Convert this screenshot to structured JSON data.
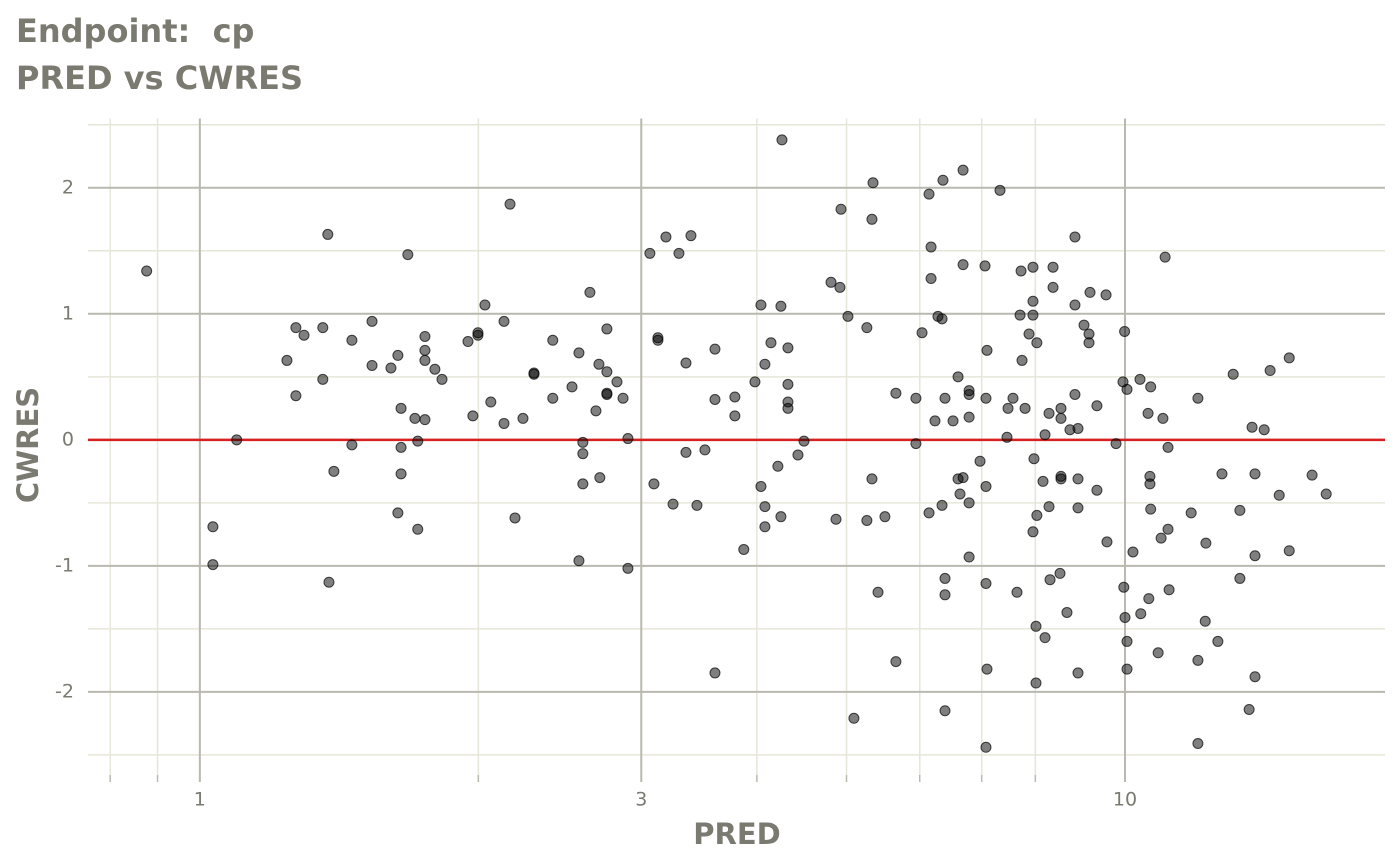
{
  "chart_data": {
    "type": "scatter",
    "title": "Endpoint:  cp",
    "subtitle": "PRED vs CWRES",
    "x_label": "PRED",
    "y_label": "CWRES",
    "x_scale": "log",
    "grid": true,
    "color": "#000000",
    "alpha": 0.5,
    "hline": 0,
    "hline_color": "#d92020",
    "xlim": [
      0.757,
      19.1
    ],
    "ylim": [
      -2.66,
      2.55
    ],
    "xticks": [
      1,
      3,
      10
    ],
    "xminor": [
      0.8,
      0.9,
      2,
      4,
      5,
      6,
      7,
      8
    ],
    "yticks": [
      -2,
      -1,
      0,
      1,
      2
    ],
    "yminor": [
      -2.5,
      -1.5,
      -0.5,
      0.5,
      1.5,
      2.5
    ],
    "x": [
      0.876,
      1.033,
      1.033,
      1.096,
      1.242,
      1.27,
      1.27,
      1.296,
      1.358,
      1.358,
      1.375,
      1.379,
      1.396,
      1.46,
      1.46,
      1.535,
      1.535,
      1.609,
      1.637,
      1.637,
      1.65,
      1.65,
      1.65,
      1.678,
      1.708,
      1.72,
      1.72,
      1.751,
      1.751,
      1.751,
      1.751,
      1.795,
      1.827,
      1.949,
      1.973,
      1.998,
      1.998,
      2.033,
      2.063,
      2.132,
      2.132,
      2.164,
      2.191,
      2.235,
      2.297,
      2.297,
      2.407,
      2.407,
      2.525,
      2.569,
      2.569,
      2.594,
      2.594,
      2.594,
      2.64,
      2.68,
      2.7,
      2.706,
      2.754,
      2.754,
      2.754,
      2.754,
      2.824,
      2.867,
      2.902,
      2.902,
      3.065,
      3.096,
      3.127,
      3.127,
      3.19,
      3.247,
      3.295,
      3.353,
      3.353,
      3.395,
      3.446,
      3.515,
      3.604,
      3.604,
      3.604,
      3.787,
      3.787,
      3.872,
      3.981,
      4.041,
      4.041,
      4.081,
      4.081,
      4.081,
      4.143,
      4.215,
      4.247,
      4.247,
      4.258,
      4.322,
      4.322,
      4.322,
      4.322,
      4.431,
      4.498,
      4.811,
      4.871,
      4.919,
      4.932,
      5.018,
      5.093,
      5.26,
      5.26,
      5.327,
      5.327,
      5.341,
      5.408,
      5.502,
      5.654,
      5.654,
      5.943,
      5.943,
      6.034,
      6.14,
      6.14,
      6.171,
      6.171,
      6.232,
      6.278,
      6.342,
      6.342,
      6.357,
      6.389,
      6.389,
      6.389,
      6.389,
      6.518,
      6.6,
      6.6,
      6.632,
      6.683,
      6.683,
      6.683,
      6.784,
      6.784,
      6.784,
      6.784,
      6.784,
      6.971,
      7.058,
      7.075,
      7.075,
      7.075,
      7.075,
      7.093,
      7.093,
      7.326,
      7.455,
      7.474,
      7.567,
      7.643,
      7.701,
      7.72,
      7.739,
      7.798,
      7.875,
      7.953,
      7.953,
      7.953,
      7.953,
      7.973,
      8.013,
      8.013,
      8.03,
      8.03,
      8.154,
      8.195,
      8.195,
      8.277,
      8.277,
      8.298,
      8.36,
      8.36,
      8.506,
      8.527,
      8.527,
      8.527,
      8.527,
      8.655,
      8.72,
      8.829,
      8.829,
      8.829,
      8.896,
      8.896,
      8.896,
      8.896,
      9.03,
      9.143,
      9.143,
      9.166,
      9.325,
      9.325,
      9.539,
      9.561,
      9.779,
      9.95,
      9.97,
      9.99,
      10.0,
      10.05,
      10.05,
      10.05,
      10.2,
      10.38,
      10.4,
      10.59,
      10.61,
      10.64,
      10.64,
      10.66,
      10.66,
      10.86,
      10.94,
      10.99,
      11.05,
      11.13,
      11.13,
      11.16,
      11.79,
      11.99,
      11.99,
      11.99,
      12.21,
      12.23,
      12.6,
      12.73,
      13.09,
      13.31,
      13.31,
      13.62,
      13.72,
      13.82,
      13.82,
      13.82,
      14.14,
      14.35,
      14.68,
      15.05,
      15.05,
      15.93,
      16.5
    ],
    "values": [
      1.34,
      -0.69,
      -0.99,
      0.0,
      0.63,
      0.89,
      0.35,
      0.83,
      0.89,
      0.48,
      1.63,
      -1.13,
      -0.25,
      0.79,
      -0.04,
      0.94,
      0.59,
      0.57,
      0.67,
      -0.58,
      0.25,
      -0.06,
      -0.27,
      1.47,
      0.17,
      -0.01,
      -0.71,
      0.82,
      0.71,
      0.63,
      0.16,
      0.56,
      0.48,
      0.78,
      0.19,
      0.83,
      0.85,
      1.07,
      0.3,
      0.94,
      0.13,
      1.87,
      -0.62,
      0.17,
      0.53,
      0.52,
      0.33,
      0.79,
      0.42,
      0.69,
      -0.96,
      -0.02,
      -0.11,
      -0.35,
      1.17,
      0.23,
      0.6,
      -0.3,
      0.88,
      0.54,
      0.37,
      0.36,
      0.46,
      0.33,
      0.01,
      -1.02,
      1.48,
      -0.35,
      0.81,
      0.79,
      1.61,
      -0.51,
      1.48,
      0.61,
      -0.1,
      1.62,
      -0.52,
      -0.08,
      0.72,
      0.32,
      -1.85,
      0.34,
      0.19,
      -0.87,
      0.46,
      -0.37,
      1.07,
      -0.53,
      -0.69,
      0.6,
      0.77,
      -0.21,
      1.06,
      -0.61,
      2.38,
      0.73,
      0.44,
      0.3,
      0.25,
      -0.12,
      -0.01,
      1.25,
      -0.63,
      1.21,
      1.83,
      0.98,
      -2.21,
      0.89,
      -0.64,
      1.75,
      -0.31,
      2.04,
      -1.21,
      -0.61,
      -1.76,
      0.37,
      0.33,
      -0.03,
      0.85,
      1.95,
      -0.58,
      1.53,
      1.28,
      0.15,
      0.98,
      0.96,
      -0.52,
      2.06,
      0.33,
      -1.1,
      -1.23,
      -2.15,
      0.15,
      0.5,
      -0.31,
      -0.43,
      1.39,
      -0.3,
      2.14,
      0.39,
      0.36,
      0.18,
      -0.5,
      -0.93,
      -0.17,
      1.38,
      0.33,
      -0.37,
      -1.14,
      -2.44,
      0.71,
      -1.82,
      1.98,
      0.02,
      0.25,
      0.33,
      -1.21,
      0.99,
      1.34,
      0.63,
      0.25,
      0.84,
      -0.73,
      0.99,
      1.1,
      1.37,
      -0.15,
      -1.48,
      -1.93,
      0.77,
      -0.6,
      -0.33,
      0.04,
      -1.57,
      -0.53,
      0.21,
      -1.11,
      1.37,
      1.21,
      -1.06,
      0.25,
      0.17,
      -0.29,
      -0.31,
      -1.37,
      0.08,
      1.61,
      1.07,
      0.36,
      0.09,
      -0.31,
      -0.54,
      -1.85,
      0.91,
      0.84,
      0.77,
      1.17,
      -0.4,
      0.27,
      1.15,
      -0.81,
      -0.03,
      0.46,
      -1.17,
      0.86,
      -1.41,
      0.4,
      -1.6,
      -1.82,
      -0.89,
      0.48,
      -1.38,
      0.21,
      -1.26,
      -0.29,
      -0.35,
      0.42,
      -0.55,
      -1.69,
      -0.78,
      0.17,
      1.45,
      -0.06,
      -0.71,
      -1.19,
      -0.58,
      0.33,
      -1.75,
      -2.41,
      -1.44,
      -0.82,
      -1.6,
      -0.27,
      0.52,
      -0.56,
      -1.1,
      -2.14,
      0.1,
      -0.27,
      -0.92,
      -1.88,
      0.08,
      0.55,
      -0.44,
      0.65,
      -0.88,
      -0.28,
      -0.43
    ]
  }
}
